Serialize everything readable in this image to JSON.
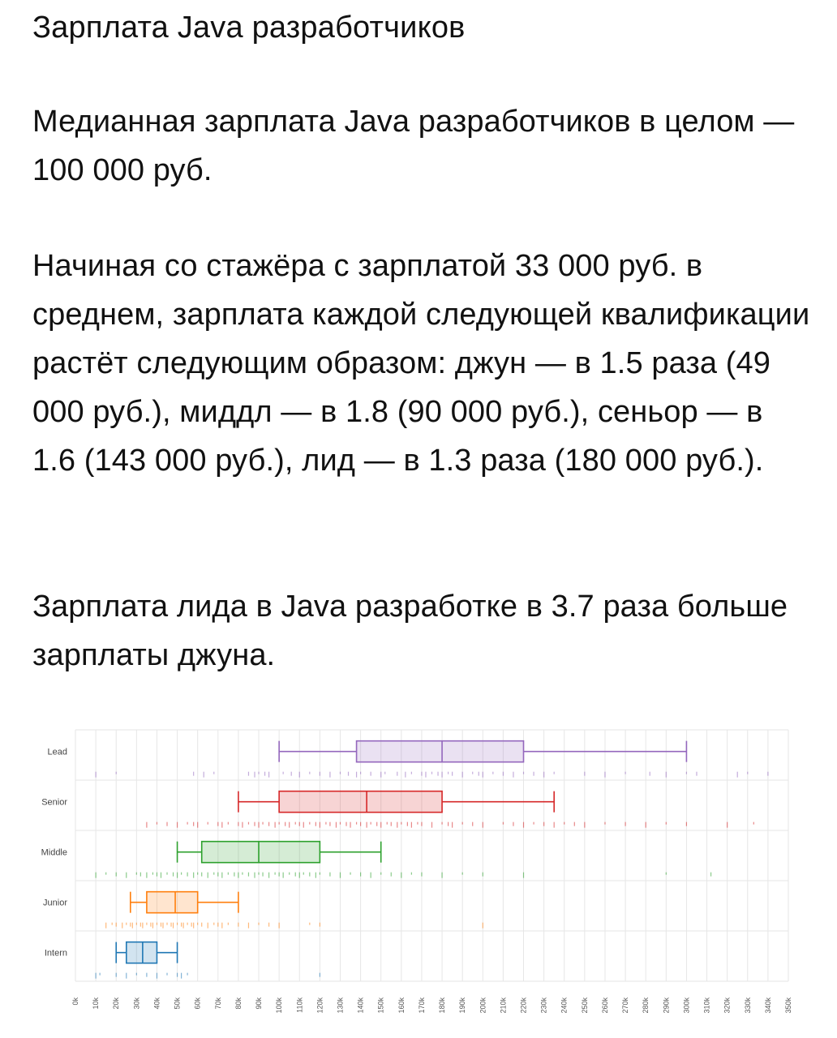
{
  "article": {
    "title": "Зарплата Java разработчиков",
    "paragraph1": "Медианная зарплата Java разработчиков в целом — 100 000 руб.",
    "paragraph2": "Начиная со стажёра с зарплатой 33 000 руб. в среднем, зарплата каждой следующей квалификации растёт следующим образом: джун — в 1.5 раза (49 000 руб.), миддл — в 1.8 (90 000 руб.), сеньор — в 1.6 (143 000 руб.), лид — в 1.3 раза (180 000 руб.).",
    "paragraph3": "Зарплата лида в Java разработке в 3.7 раза больше зарплаты джуна."
  },
  "chart_data": {
    "type": "boxplot",
    "orientation": "horizontal",
    "title": "",
    "xlabel": "",
    "ylabel": "",
    "xlim": [
      0,
      350000
    ],
    "x_ticks": [
      "0k",
      "10k",
      "20k",
      "30k",
      "40k",
      "50k",
      "60k",
      "70k",
      "80k",
      "90k",
      "100k",
      "110k",
      "120k",
      "130k",
      "140k",
      "150k",
      "160k",
      "170k",
      "180k",
      "190k",
      "200k",
      "210k",
      "220k",
      "230k",
      "240k",
      "250k",
      "260k",
      "270k",
      "280k",
      "290k",
      "300k",
      "310k",
      "320k",
      "330k",
      "340k",
      "350k"
    ],
    "grid": true,
    "series": [
      {
        "category": "Lead",
        "color": "#9467bd",
        "min": 100000,
        "q1": 138000,
        "median": 180000,
        "q3": 220000,
        "max": 300000,
        "points": [
          10000,
          20000,
          58000,
          63000,
          68000,
          85000,
          88000,
          90000,
          93000,
          95000,
          102000,
          106000,
          110000,
          115000,
          120000,
          125000,
          130000,
          134000,
          138000,
          140000,
          145000,
          150000,
          152000,
          158000,
          162000,
          165000,
          170000,
          172000,
          175000,
          178000,
          180000,
          183000,
          185000,
          190000,
          195000,
          198000,
          200000,
          205000,
          210000,
          215000,
          220000,
          225000,
          230000,
          235000,
          250000,
          260000,
          270000,
          282000,
          290000,
          300000,
          305000,
          325000,
          330000,
          340000
        ]
      },
      {
        "category": "Senior",
        "color": "#d62728",
        "min": 80000,
        "q1": 100000,
        "median": 143000,
        "q3": 180000,
        "max": 235000,
        "points": [
          35000,
          40000,
          45000,
          50000,
          55000,
          58000,
          60000,
          65000,
          70000,
          72000,
          75000,
          80000,
          82000,
          85000,
          88000,
          90000,
          92000,
          95000,
          98000,
          100000,
          103000,
          105000,
          108000,
          110000,
          112000,
          115000,
          118000,
          120000,
          123000,
          125000,
          128000,
          130000,
          133000,
          135000,
          138000,
          140000,
          143000,
          145000,
          148000,
          150000,
          153000,
          155000,
          158000,
          160000,
          163000,
          165000,
          168000,
          170000,
          175000,
          180000,
          183000,
          185000,
          190000,
          195000,
          200000,
          210000,
          215000,
          220000,
          225000,
          230000,
          235000,
          240000,
          245000,
          250000,
          260000,
          270000,
          280000,
          290000,
          300000,
          320000,
          333000
        ]
      },
      {
        "category": "Middle",
        "color": "#2ca02c",
        "min": 50000,
        "q1": 62000,
        "median": 90000,
        "q3": 120000,
        "max": 150000,
        "points": [
          10000,
          15000,
          20000,
          25000,
          30000,
          32000,
          35000,
          38000,
          40000,
          42000,
          45000,
          48000,
          50000,
          52000,
          55000,
          58000,
          60000,
          62000,
          65000,
          68000,
          70000,
          72000,
          75000,
          78000,
          80000,
          82000,
          85000,
          88000,
          90000,
          92000,
          95000,
          98000,
          100000,
          102000,
          105000,
          108000,
          110000,
          112000,
          115000,
          118000,
          120000,
          125000,
          130000,
          135000,
          140000,
          145000,
          150000,
          155000,
          160000,
          165000,
          170000,
          180000,
          190000,
          200000,
          220000,
          290000,
          312000
        ]
      },
      {
        "category": "Junior",
        "color": "#ff7f0e",
        "min": 27000,
        "q1": 35000,
        "median": 49000,
        "q3": 60000,
        "max": 80000,
        "points": [
          15000,
          18000,
          20000,
          23000,
          25000,
          27000,
          28000,
          30000,
          32000,
          33000,
          35000,
          37000,
          38000,
          40000,
          42000,
          43000,
          45000,
          47000,
          48000,
          50000,
          52000,
          53000,
          55000,
          57000,
          58000,
          60000,
          62000,
          65000,
          68000,
          70000,
          72000,
          75000,
          80000,
          85000,
          90000,
          95000,
          100000,
          115000,
          120000,
          200000
        ]
      },
      {
        "category": "Intern",
        "color": "#1f77b4",
        "min": 20000,
        "q1": 25000,
        "median": 33000,
        "q3": 40000,
        "max": 50000,
        "points": [
          10000,
          12000,
          20000,
          25000,
          30000,
          35000,
          40000,
          45000,
          50000,
          52000,
          55000,
          120000
        ]
      }
    ]
  }
}
